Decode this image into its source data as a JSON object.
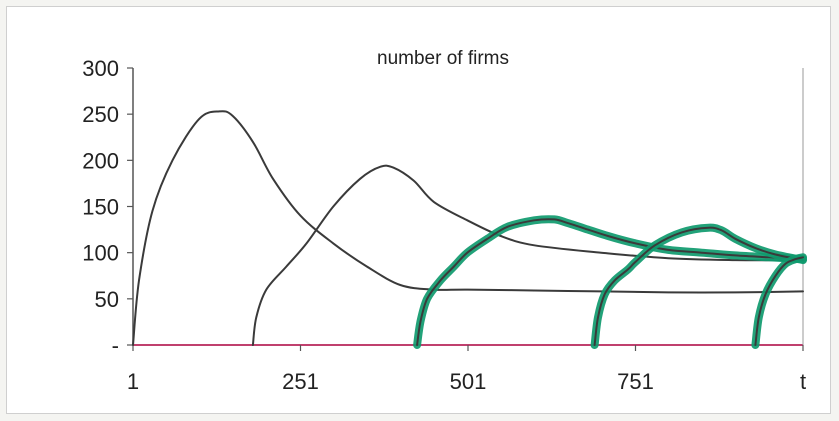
{
  "chart_data": {
    "type": "line",
    "title": "number of firms",
    "xlabel": "",
    "ylabel": "",
    "xlim": [
      1,
      1001
    ],
    "ylim": [
      0,
      300
    ],
    "grid": false,
    "x_ticks": [
      "1",
      "251",
      "501",
      "751",
      "t"
    ],
    "y_ticks": [
      "300",
      "250",
      "200",
      "150",
      "100",
      "50",
      "-"
    ],
    "colors": {
      "industry": "#3a3a3a",
      "highlight": "#0f9a6e",
      "baseline": "#c0406e"
    },
    "series": [
      {
        "highlight": false,
        "x": [
          1,
          10,
          30,
          60,
          100,
          130,
          150,
          180,
          210,
          251,
          300,
          350,
          400,
          450,
          501,
          600,
          700,
          800,
          900,
          1001
        ],
        "y": [
          0,
          70,
          145,
          200,
          245,
          253,
          248,
          220,
          180,
          140,
          110,
          85,
          65,
          60,
          60,
          59,
          58,
          57,
          57,
          58
        ]
      },
      {
        "highlight": false,
        "x": [
          180,
          185,
          200,
          230,
          260,
          300,
          340,
          370,
          390,
          420,
          450,
          500,
          550,
          600,
          700,
          800,
          900,
          1001
        ],
        "y": [
          0,
          30,
          60,
          85,
          110,
          150,
          180,
          193,
          192,
          178,
          155,
          135,
          118,
          108,
          100,
          94,
          92,
          92
        ]
      },
      {
        "highlight": true,
        "x": [
          425,
          430,
          440,
          460,
          480,
          500,
          530,
          560,
          600,
          630,
          650,
          680,
          710,
          751,
          800,
          850,
          900,
          950,
          1001
        ],
        "y": [
          0,
          25,
          50,
          70,
          85,
          100,
          115,
          128,
          135,
          136,
          132,
          125,
          118,
          110,
          103,
          100,
          97,
          95,
          93
        ]
      },
      {
        "highlight": true,
        "x": [
          690,
          695,
          705,
          720,
          740,
          751,
          780,
          820,
          860,
          880,
          900,
          930,
          960,
          1001
        ],
        "y": [
          0,
          30,
          55,
          70,
          82,
          90,
          108,
          122,
          127,
          124,
          115,
          105,
          98,
          92
        ]
      },
      {
        "highlight": true,
        "x": [
          930,
          935,
          945,
          960,
          975,
          990,
          1001
        ],
        "y": [
          0,
          30,
          55,
          75,
          88,
          93,
          95
        ]
      }
    ]
  }
}
